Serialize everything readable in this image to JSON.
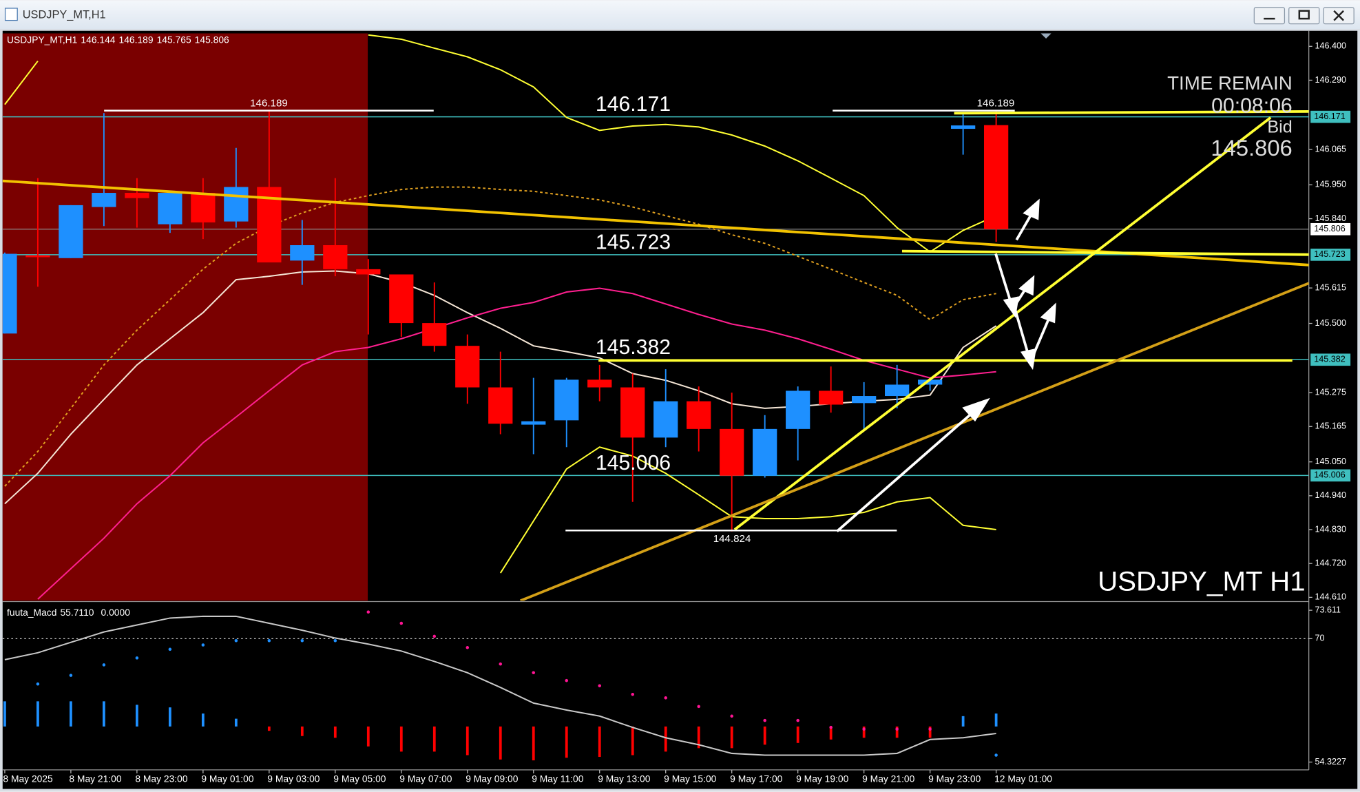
{
  "window": {
    "title": "USDJPY_MT,H1"
  },
  "chart_data": [
    {
      "type": "candlestick",
      "header": "USDJPY_MT,H1",
      "watermark": "USDJPY_MT H1",
      "timer_title": "TIME REMAIN",
      "timer": "00:08:06",
      "bid_label": "Bid",
      "bid": 145.806,
      "up_color": "#1e90ff",
      "down_color": "#ff0000",
      "level_color": "#3fbfbf",
      "levels": [
        146.171,
        145.723,
        145.382,
        145.006
      ],
      "categories": [
        "8 May 2025",
        null,
        "8 May 21:00",
        null,
        "8 May 23:00",
        null,
        "9 May 01:00",
        null,
        "9 May 03:00",
        null,
        "9 May 05:00",
        null,
        "9 May 07:00",
        null,
        "9 May 09:00",
        null,
        "9 May 11:00",
        null,
        "9 May 13:00",
        null,
        "9 May 15:00",
        null,
        "9 May 17:00",
        null,
        "9 May 19:00",
        null,
        "9 May 21:00",
        null,
        "9 May 23:00",
        null,
        "12 May 01:00"
      ],
      "open": [
        145.467,
        145.721,
        145.712,
        145.878,
        145.924,
        145.822,
        145.924,
        145.831,
        145.943,
        145.704,
        145.754,
        145.676,
        145.659,
        145.501,
        145.427,
        145.292,
        145.171,
        145.185,
        145.317,
        145.292,
        145.129,
        145.247,
        145.157,
        145.005,
        145.157,
        145.281,
        145.241,
        145.264,
        145.301,
        146.132,
        146.144
      ],
      "high": [
        145.73,
        145.972,
        145.884,
        146.183,
        145.972,
        145.924,
        145.972,
        146.07,
        146.189,
        145.836,
        145.972,
        145.709,
        145.659,
        145.633,
        145.464,
        145.408,
        145.323,
        145.323,
        145.365,
        145.337,
        145.351,
        145.295,
        145.275,
        145.202,
        145.295,
        145.36,
        145.309,
        145.365,
        145.323,
        146.183,
        146.189
      ],
      "low": [
        145.467,
        145.619,
        145.712,
        145.816,
        145.811,
        145.794,
        145.774,
        145.811,
        145.698,
        145.625,
        145.653,
        145.464,
        145.456,
        145.408,
        145.239,
        145.14,
        145.075,
        145.098,
        145.247,
        144.92,
        145.098,
        145.084,
        144.824,
        144.999,
        145.055,
        145.21,
        145.154,
        145.224,
        145.281,
        146.048,
        145.765
      ],
      "close": [
        145.726,
        145.715,
        145.884,
        145.924,
        145.907,
        145.924,
        145.828,
        145.943,
        145.698,
        145.754,
        145.676,
        145.659,
        145.501,
        145.427,
        145.292,
        145.174,
        145.182,
        145.317,
        145.292,
        145.129,
        145.247,
        145.157,
        145.005,
        145.157,
        145.281,
        145.236,
        145.264,
        145.301,
        145.317,
        146.143,
        145.806
      ],
      "series": [
        {
          "color": "#f5e6d6",
          "style": "solid",
          "values": [
            144.914,
            145.013,
            145.14,
            145.253,
            145.365,
            145.45,
            145.535,
            145.642,
            145.653,
            145.667,
            145.67,
            145.661,
            145.633,
            145.591,
            145.535,
            145.484,
            145.427,
            145.408,
            145.388,
            145.337,
            145.315,
            145.281,
            145.239,
            145.224,
            145.23,
            145.239,
            145.247,
            145.253,
            145.267,
            145.422,
            145.492
          ]
        },
        {
          "color": "#ff1f8f",
          "style": "solid",
          "values": [
            null,
            144.604,
            144.703,
            144.802,
            144.914,
            145.005,
            145.112,
            145.196,
            145.281,
            145.365,
            145.408,
            145.422,
            145.45,
            145.484,
            145.518,
            145.549,
            145.568,
            145.602,
            145.614,
            145.597,
            145.563,
            145.529,
            145.498,
            145.478,
            145.45,
            145.416,
            145.38,
            145.351,
            145.323,
            145.332,
            145.343
          ]
        },
        {
          "color": "#ffff33",
          "style": "solid",
          "values": [
            146.211,
            146.352,
            null,
            null,
            null,
            null,
            null,
            null,
            null,
            null,
            null,
            146.437,
            146.423,
            146.394,
            146.366,
            146.324,
            146.268,
            146.169,
            146.127,
            146.141,
            146.146,
            146.138,
            146.112,
            146.076,
            146.028,
            145.972,
            145.915,
            145.811,
            145.732,
            145.802,
            145.85
          ]
        },
        {
          "color": "#ffff33",
          "style": "solid",
          "values": [
            null,
            null,
            null,
            null,
            null,
            null,
            null,
            null,
            null,
            null,
            null,
            null,
            null,
            null,
            null,
            144.689,
            144.858,
            145.027,
            145.098,
            145.069,
            145.013,
            144.943,
            144.872,
            144.866,
            144.866,
            144.872,
            144.886,
            144.92,
            144.934,
            144.844,
            144.83
          ]
        },
        {
          "color": "#e0a020",
          "style": "dashed",
          "values": [
            144.971,
            145.084,
            145.224,
            145.365,
            145.478,
            145.577,
            145.676,
            145.76,
            145.816,
            145.859,
            145.893,
            145.915,
            145.935,
            145.943,
            145.943,
            145.935,
            145.929,
            145.915,
            145.901,
            145.878,
            145.85,
            145.822,
            145.788,
            145.76,
            145.718,
            145.676,
            145.633,
            145.591,
            145.512,
            145.577,
            145.597
          ]
        }
      ],
      "ylim": [
        144.599,
        146.442
      ],
      "yticks": [
        {
          "value": 146.4,
          "label": "146.400"
        },
        {
          "value": 146.29,
          "label": "146.290"
        },
        146.065,
        {
          "value": 145.95,
          "label": "145.950"
        },
        {
          "value": 145.84,
          "label": "145.840"
        },
        145.615,
        {
          "value": 145.5,
          "label": "145.500"
        },
        145.275,
        145.165,
        {
          "value": 145.05,
          "label": "145.050"
        },
        {
          "value": 144.94,
          "label": "144.940"
        },
        {
          "value": 144.83,
          "label": "144.830"
        },
        {
          "value": 144.72,
          "label": "144.720"
        },
        {
          "value": 144.61,
          "label": "144.610"
        }
      ],
      "grid": false
    },
    {
      "type": "histogram-line",
      "title": "fuuta_Macd",
      "legend_values": [
        {
          "value": 55.711,
          "label": "55.7110"
        },
        {
          "value": 0,
          "label": "0.0000"
        }
      ],
      "histogram": {
        "values": [
          62.04,
          62.04,
          62.04,
          62.04,
          61.6,
          61.27,
          60.49,
          59.83,
          58.29,
          57.63,
          57.41,
          56.31,
          55.65,
          55.65,
          55.2,
          54.65,
          54.54,
          54.87,
          54.98,
          55.2,
          55.65,
          56.09,
          56.09,
          56.53,
          56.75,
          57.19,
          57.41,
          57.41,
          57.41,
          60.16,
          60.49
        ],
        "colors": [
          "#1e90ff",
          "#1e90ff",
          "#1e90ff",
          "#1e90ff",
          "#1e90ff",
          "#1e90ff",
          "#1e90ff",
          "#1e90ff",
          "#ff0000",
          "#ff0000",
          "#ff0000",
          "#ff0000",
          "#ff0000",
          "#ff0000",
          "#ff0000",
          "#ff0000",
          "#ff0000",
          "#ff0000",
          "#ff0000",
          "#ff0000",
          "#ff0000",
          "#ff0000",
          "#ff0000",
          "#ff0000",
          "#ff0000",
          "#ff0000",
          "#ff0000",
          "#ff0000",
          "#ff0000",
          "#1e90ff",
          "#1e90ff"
        ]
      },
      "signal": {
        "values": [
          null,
          64.24,
          65.34,
          66.67,
          67.55,
          68.65,
          69.2,
          69.75,
          69.75,
          69.75,
          69.75,
          73.39,
          71.96,
          70.3,
          68.87,
          66.78,
          65.68,
          64.68,
          64.02,
          62.92,
          62.48,
          61.38,
          60.16,
          59.61,
          59.61,
          58.73,
          58.51,
          58.51,
          58.51,
          null,
          55.2
        ],
        "colors": [
          null,
          "#1e90ff",
          "#1e90ff",
          "#1e90ff",
          "#1e90ff",
          "#1e90ff",
          "#1e90ff",
          "#1e90ff",
          "#1e90ff",
          "#1e90ff",
          "#1e90ff",
          "#ff1493",
          "#ff1493",
          "#ff1493",
          "#ff1493",
          "#ff1493",
          "#ff1493",
          "#ff1493",
          "#ff1493",
          "#ff1493",
          "#ff1493",
          "#ff1493",
          "#ff1493",
          "#ff1493",
          "#ff1493",
          "#ff1493",
          "#ff1493",
          "#ff1493",
          "#ff1493",
          null,
          "#1e90ff"
        ]
      },
      "series": [
        {
          "color": "#c8c8c8",
          "values": [
            67.33,
            68.21,
            69.53,
            70.86,
            71.74,
            72.62,
            72.84,
            72.84,
            71.96,
            71.08,
            70.08,
            69.31,
            68.43,
            67.11,
            65.68,
            63.8,
            61.82,
            60.94,
            60.16,
            58.73,
            57.41,
            56.53,
            55.42,
            55.2,
            55.2,
            55.2,
            55.2,
            55.42,
            57.19,
            57.41,
            57.96
          ]
        }
      ],
      "levels": [
        70
      ],
      "ylim": [
        54.3227,
        73.611
      ],
      "yticks": [
        73.611,
        70,
        54.3227
      ]
    }
  ]
}
